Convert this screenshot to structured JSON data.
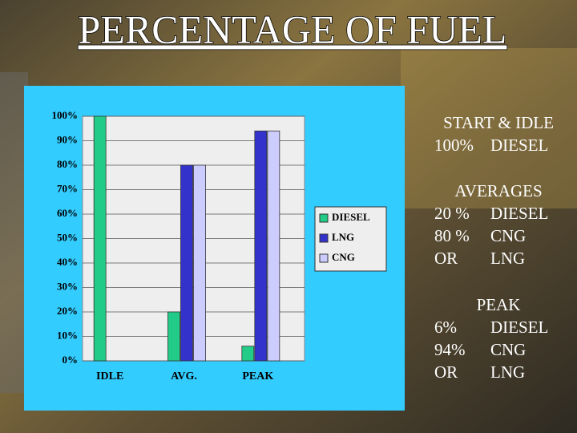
{
  "chart_data": {
    "type": "bar",
    "title": "PERCENTAGE OF FUEL",
    "categories": [
      "IDLE",
      "AVG.",
      "PEAK"
    ],
    "series": [
      {
        "name": "DIESEL",
        "color": "#22cc88",
        "values": [
          100,
          20,
          6
        ]
      },
      {
        "name": "LNG",
        "color": "#3333cc",
        "values": [
          0,
          80,
          94
        ]
      },
      {
        "name": "CNG",
        "color": "#ccccff",
        "values": [
          0,
          80,
          94
        ]
      }
    ],
    "ylim": [
      0,
      100
    ],
    "yticks": [
      {
        "value": 0,
        "label": "0%"
      },
      {
        "value": 10,
        "label": "10%"
      },
      {
        "value": 20,
        "label": "20%"
      },
      {
        "value": 30,
        "label": "30%"
      },
      {
        "value": 40,
        "label": "40%"
      },
      {
        "value": 50,
        "label": "50%"
      },
      {
        "value": 60,
        "label": "60%"
      },
      {
        "value": 70,
        "label": "70%"
      },
      {
        "value": 80,
        "label": "80%"
      },
      {
        "value": 90,
        "label": "90%"
      },
      {
        "value": 100,
        "label": "100%"
      }
    ],
    "grid": true,
    "legend": "right"
  },
  "text_blocks": [
    {
      "heading": "START & IDLE",
      "rows": [
        [
          "100%",
          "DIESEL"
        ]
      ]
    },
    {
      "heading": "AVERAGES",
      "rows": [
        [
          "20 %",
          "DIESEL"
        ],
        [
          "80 %",
          "CNG"
        ],
        [
          "OR",
          "LNG"
        ]
      ]
    },
    {
      "heading": "PEAK",
      "rows": [
        [
          "6%",
          "DIESEL"
        ],
        [
          "94%",
          "CNG"
        ],
        [
          "OR",
          "LNG"
        ]
      ]
    }
  ]
}
